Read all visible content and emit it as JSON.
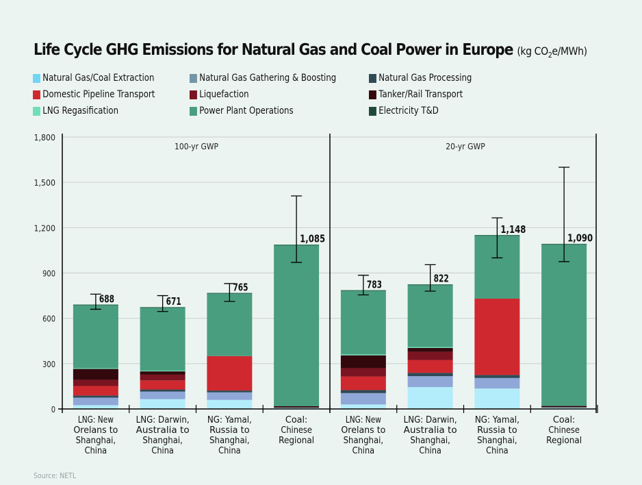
{
  "title": {
    "main": "Life Cycle GHG Emissions for Natural Gas and Coal Power in Europe",
    "unit_prefix": "(kg CO",
    "unit_sub": "2",
    "unit_suffix": "e/MWh)"
  },
  "source": "Source: NETL",
  "chart_data": {
    "type": "bar",
    "stacked": true,
    "title": "Life Cycle GHG Emissions for Natural Gas and Coal Power in Europe (kg CO2e/MWh)",
    "xlabel": "",
    "ylabel": "",
    "ylim": [
      0,
      1800
    ],
    "yticks": [
      0,
      300,
      600,
      900,
      1200,
      1500,
      1800
    ],
    "ytick_labels": [
      "0",
      "300",
      "600",
      "900",
      "1,200",
      "1,500",
      "1,800"
    ],
    "grid": true,
    "legend_position": "top",
    "panels": [
      {
        "label": "100-yr GWP",
        "categories": [
          "LNG: New Orelans to Shanghai, China",
          "LNG: Darwin, Australia to Shanghai, China",
          "NG: Yamal, Russia to Shanghai, China",
          "Coal: Chinese Regional"
        ],
        "category_lines": [
          [
            "LNG: New",
            "Orelans to",
            "Shanghai,",
            "China"
          ],
          [
            "LNG: Darwin,",
            "Australia to",
            "Shanghai,",
            "China"
          ],
          [
            "NG: Yamal,",
            "Russia to",
            "Shanghai,",
            "China"
          ],
          [
            "Coal:",
            "Chinese",
            "Regional"
          ]
        ],
        "totals": [
          688,
          671,
          765,
          1085
        ],
        "total_labels": [
          "688",
          "671",
          "765",
          "1,085"
        ],
        "error_bars": [
          [
            660,
            760
          ],
          [
            645,
            750
          ],
          [
            712,
            830
          ],
          [
            970,
            1410
          ]
        ]
      },
      {
        "label": "20-yr GWP",
        "categories": [
          "LNG: New Orelans to Shanghai, China",
          "LNG: Darwin, Australia to Shanghai, China",
          "NG: Yamal, Russia to Shanghai, China",
          "Coal: Chinese Regional"
        ],
        "category_lines": [
          [
            "LNG: New",
            "Orelans to",
            "Shanghai,",
            "China"
          ],
          [
            "LNG: Darwin,",
            "Australia to",
            "Shanghai,",
            "China"
          ],
          [
            "NG: Yamal,",
            "Russia to",
            "Shanghai,",
            "China"
          ],
          [
            "Coal:",
            "Chinese",
            "Regional"
          ]
        ],
        "totals": [
          783,
          822,
          1148,
          1090
        ],
        "total_labels": [
          "783",
          "822",
          "1,148",
          "1,090"
        ],
        "error_bars": [
          [
            755,
            885
          ],
          [
            780,
            955
          ],
          [
            1000,
            1265
          ],
          [
            975,
            1600
          ]
        ]
      }
    ],
    "series": [
      {
        "name": "Natural Gas/Coal Extraction",
        "color": "#b3ecfa",
        "values": [
          [
            25,
            65,
            60,
            8
          ],
          [
            30,
            145,
            135,
            10
          ]
        ]
      },
      {
        "name": "Natural Gas Gathering & Boosting",
        "color": "#8fa8d8",
        "values": [
          [
            50,
            50,
            50,
            0
          ],
          [
            75,
            72,
            70,
            0
          ]
        ]
      },
      {
        "name": "Natural Gas Processing",
        "color": "#2f4a55",
        "values": [
          [
            14,
            14,
            12,
            0
          ],
          [
            20,
            22,
            20,
            0
          ]
        ]
      },
      {
        "name": "Domestic Pipeline Transport",
        "color": "#d0282f",
        "values": [
          [
            63,
            60,
            228,
            0
          ],
          [
            90,
            85,
            505,
            0
          ]
        ]
      },
      {
        "name": "Liquefaction",
        "color": "#7a1420",
        "values": [
          [
            41,
            38,
            0,
            0
          ],
          [
            55,
            55,
            0,
            0
          ]
        ]
      },
      {
        "name": "Tanker/Rail Transport",
        "color": "#33080d",
        "values": [
          [
            72,
            22,
            0,
            10
          ],
          [
            85,
            25,
            0,
            10
          ]
        ]
      },
      {
        "name": "LNG Regasification",
        "color": "#6ee0b8",
        "values": [
          [
            5,
            5,
            0,
            0
          ],
          [
            6,
            6,
            0,
            0
          ]
        ]
      },
      {
        "name": "Power Plant Operations",
        "color": "#4a9e80",
        "values": [
          [
            418,
            417,
            415,
            1067
          ],
          [
            422,
            412,
            418,
            1070
          ]
        ]
      },
      {
        "name": "Electricity T&D",
        "color": "#1f4a3a",
        "values": [
          [
            0,
            0,
            0,
            0
          ],
          [
            0,
            0,
            0,
            0
          ]
        ]
      }
    ]
  },
  "legend": [
    {
      "label": "Natural Gas/Coal Extraction",
      "color": "#6fd6f5"
    },
    {
      "label": "Natural Gas Gathering & Boosting",
      "color": "#7396a6"
    },
    {
      "label": "Natural Gas Processing",
      "color": "#2f4a55"
    },
    {
      "label": "Domestic Pipeline Transport",
      "color": "#d0282f"
    },
    {
      "label": "Liquefaction",
      "color": "#7a1420"
    },
    {
      "label": "Tanker/Rail Transport",
      "color": "#33080d"
    },
    {
      "label": "LNG Regasification",
      "color": "#6ee0b8"
    },
    {
      "label": "Power Plant Operations",
      "color": "#4a9e80"
    },
    {
      "label": "Electricity T&D",
      "color": "#1f4a3a"
    }
  ]
}
